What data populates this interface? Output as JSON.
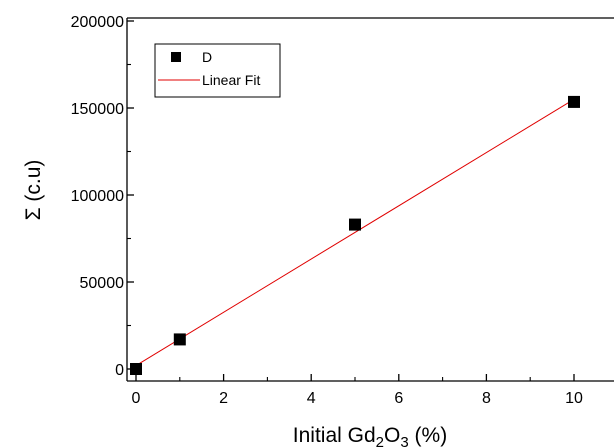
{
  "chart_data": {
    "type": "scatter",
    "xlabel_prefix": "Initial Gd",
    "xlabel_sub1": "2",
    "xlabel_mid": "O",
    "xlabel_sub2": "3",
    "xlabel_suffix": " (%)",
    "ylabel": "Σ (c.u)",
    "xlim": [
      -0.3,
      10.6
    ],
    "ylim": [
      -8000,
      200000
    ],
    "x_ticks": [
      0,
      2,
      4,
      6,
      8,
      10
    ],
    "x_tick_labels": [
      "0",
      "2",
      "4",
      "6",
      "8",
      "10"
    ],
    "y_ticks": [
      0,
      50000,
      100000,
      150000,
      200000
    ],
    "y_tick_labels": [
      "0",
      "50000",
      "100000",
      "150000",
      "200000"
    ],
    "series": [
      {
        "name": "D",
        "marker": "square",
        "color": "#000000",
        "x": [
          0,
          1,
          5,
          10
        ],
        "y": [
          0,
          17000,
          83000,
          153500
        ]
      }
    ],
    "fit": {
      "name": "Linear Fit",
      "color": "#e00000",
      "x": [
        0,
        10
      ],
      "y": [
        2000,
        155000
      ]
    },
    "legend": {
      "placement": "top-left",
      "entries": [
        "D",
        "Linear Fit"
      ]
    },
    "grid": false
  }
}
